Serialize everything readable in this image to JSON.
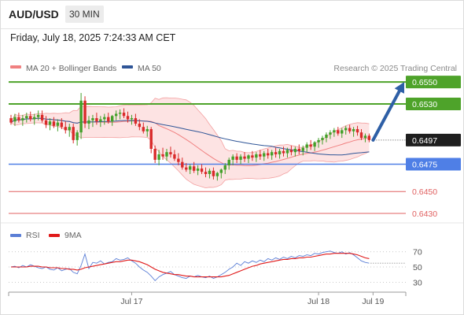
{
  "header": {
    "symbol": "AUD/USD",
    "interval": "30 MIN",
    "timestamp": "Friday, July 18, 2025 7:24:33 AM CET"
  },
  "colors": {
    "bollinger": "#f3a0a0",
    "bollinger_fill": "#fde3e3",
    "ma20": "#f08080",
    "ma50": "#2f5597",
    "resistance": "#4ea32a",
    "support": "#4f7fe6",
    "target": "#e06060",
    "arrow": "#2e5fa6",
    "candle_up": "#43a02a",
    "candle_down": "#d92a2a",
    "rsi": "#5b7fd6",
    "rsi_ma": "#e01a1a"
  },
  "chart_data": [
    {
      "type": "candlestick",
      "legend": [
        {
          "name": "MA 20 + Bollinger Bands",
          "color": "#f08080"
        },
        {
          "name": "MA 50",
          "color": "#2f5597"
        }
      ],
      "credit": "Research © 2025 Trading Central",
      "ylim": [
        0.6425,
        0.6553
      ],
      "current_price": "0.6497",
      "levels": [
        {
          "label": "0.6550",
          "value": 0.655,
          "kind": "resistance",
          "badge": true
        },
        {
          "label": "0.6530",
          "value": 0.653,
          "kind": "resistance",
          "badge": true
        },
        {
          "label": "0.6475",
          "value": 0.6475,
          "kind": "support",
          "badge": true
        },
        {
          "label": "0.6450",
          "value": 0.645,
          "kind": "target",
          "badge": false
        },
        {
          "label": "0.6430",
          "value": 0.643,
          "kind": "target",
          "badge": false
        }
      ],
      "forecast_arrow": {
        "from": 0.6497,
        "to": 0.655
      },
      "x_ticks": [
        {
          "label": "Jul 17",
          "index": 31
        },
        {
          "label": "Jul 18",
          "index": 79
        },
        {
          "label": "Jul 19",
          "index": 93
        }
      ],
      "candles": [
        [
          0.6517,
          0.652,
          0.6511,
          0.6513
        ],
        [
          0.6514,
          0.6521,
          0.651,
          0.6518
        ],
        [
          0.6518,
          0.6522,
          0.6513,
          0.6515
        ],
        [
          0.6515,
          0.652,
          0.651,
          0.6517
        ],
        [
          0.6517,
          0.6522,
          0.6513,
          0.6519
        ],
        [
          0.6519,
          0.6523,
          0.6514,
          0.6516
        ],
        [
          0.6516,
          0.6521,
          0.6511,
          0.6518
        ],
        [
          0.6518,
          0.6524,
          0.6515,
          0.652
        ],
        [
          0.652,
          0.6524,
          0.6513,
          0.6515
        ],
        [
          0.6515,
          0.6519,
          0.6508,
          0.6511
        ],
        [
          0.6511,
          0.6517,
          0.6506,
          0.6514
        ],
        [
          0.6514,
          0.6518,
          0.6508,
          0.651
        ],
        [
          0.651,
          0.6516,
          0.6505,
          0.6513
        ],
        [
          0.6513,
          0.6517,
          0.6507,
          0.6509
        ],
        [
          0.6509,
          0.6514,
          0.6503,
          0.6506
        ],
        [
          0.6506,
          0.6512,
          0.65,
          0.6509
        ],
        [
          0.6509,
          0.6512,
          0.6494,
          0.6497
        ],
        [
          0.6497,
          0.6506,
          0.6492,
          0.6504
        ],
        [
          0.6504,
          0.654,
          0.6498,
          0.6533
        ],
        [
          0.6533,
          0.6537,
          0.6508,
          0.6512
        ],
        [
          0.6512,
          0.6519,
          0.6507,
          0.6515
        ],
        [
          0.6515,
          0.652,
          0.6509,
          0.6517
        ],
        [
          0.6517,
          0.6522,
          0.6511,
          0.6514
        ],
        [
          0.6514,
          0.6519,
          0.6509,
          0.6516
        ],
        [
          0.6516,
          0.6521,
          0.6511,
          0.6518
        ],
        [
          0.6518,
          0.6522,
          0.6512,
          0.6514
        ],
        [
          0.6514,
          0.652,
          0.651,
          0.6519
        ],
        [
          0.6519,
          0.6524,
          0.6515,
          0.6521
        ],
        [
          0.6521,
          0.6525,
          0.6516,
          0.6522
        ],
        [
          0.6522,
          0.6526,
          0.6517,
          0.6519
        ],
        [
          0.6519,
          0.6523,
          0.6513,
          0.6516
        ],
        [
          0.6516,
          0.652,
          0.6511,
          0.6517
        ],
        [
          0.6517,
          0.6521,
          0.651,
          0.6512
        ],
        [
          0.6512,
          0.6516,
          0.6506,
          0.6509
        ],
        [
          0.6509,
          0.6513,
          0.6503,
          0.6505
        ],
        [
          0.6505,
          0.651,
          0.65,
          0.6507
        ],
        [
          0.6507,
          0.6509,
          0.6485,
          0.6489
        ],
        [
          0.6489,
          0.6492,
          0.6476,
          0.6479
        ],
        [
          0.6479,
          0.6488,
          0.6474,
          0.6484
        ],
        [
          0.6484,
          0.649,
          0.6479,
          0.6482
        ],
        [
          0.6482,
          0.6489,
          0.6478,
          0.6486
        ],
        [
          0.6486,
          0.6491,
          0.6481,
          0.6484
        ],
        [
          0.6484,
          0.6488,
          0.6478,
          0.648
        ],
        [
          0.648,
          0.6485,
          0.6474,
          0.6477
        ],
        [
          0.6477,
          0.6481,
          0.647,
          0.6472
        ],
        [
          0.6472,
          0.6476,
          0.6468,
          0.647
        ],
        [
          0.647,
          0.6475,
          0.6466,
          0.6473
        ],
        [
          0.6473,
          0.6477,
          0.6467,
          0.6469
        ],
        [
          0.6469,
          0.6474,
          0.6465,
          0.6471
        ],
        [
          0.6471,
          0.6475,
          0.6466,
          0.6468
        ],
        [
          0.6468,
          0.6472,
          0.6463,
          0.6466
        ],
        [
          0.6466,
          0.6471,
          0.6462,
          0.6469
        ],
        [
          0.6469,
          0.6472,
          0.6461,
          0.6464
        ],
        [
          0.6464,
          0.6468,
          0.646,
          0.6467
        ],
        [
          0.6467,
          0.6471,
          0.6462,
          0.647
        ],
        [
          0.647,
          0.6476,
          0.6466,
          0.6474
        ],
        [
          0.6474,
          0.6481,
          0.647,
          0.6479
        ],
        [
          0.6479,
          0.6484,
          0.6474,
          0.6482
        ],
        [
          0.6482,
          0.6485,
          0.6476,
          0.6479
        ],
        [
          0.6479,
          0.6484,
          0.6475,
          0.6482
        ],
        [
          0.6482,
          0.6486,
          0.6477,
          0.648
        ],
        [
          0.648,
          0.6484,
          0.6476,
          0.6483
        ],
        [
          0.6483,
          0.6487,
          0.6478,
          0.6481
        ],
        [
          0.6481,
          0.6486,
          0.6477,
          0.6484
        ],
        [
          0.6484,
          0.6488,
          0.6479,
          0.6482
        ],
        [
          0.6482,
          0.6487,
          0.6478,
          0.6485
        ],
        [
          0.6485,
          0.6489,
          0.648,
          0.6483
        ],
        [
          0.6483,
          0.6488,
          0.6479,
          0.6486
        ],
        [
          0.6486,
          0.649,
          0.6481,
          0.6484
        ],
        [
          0.6484,
          0.6489,
          0.648,
          0.6487
        ],
        [
          0.6487,
          0.6491,
          0.6482,
          0.6485
        ],
        [
          0.6485,
          0.649,
          0.6481,
          0.6488
        ],
        [
          0.6488,
          0.6492,
          0.6483,
          0.6486
        ],
        [
          0.6486,
          0.6491,
          0.6482,
          0.6489
        ],
        [
          0.6489,
          0.6493,
          0.6484,
          0.6487
        ],
        [
          0.6487,
          0.6492,
          0.6483,
          0.649
        ],
        [
          0.649,
          0.6495,
          0.6486,
          0.6493
        ],
        [
          0.6493,
          0.6497,
          0.6488,
          0.6491
        ],
        [
          0.6491,
          0.6496,
          0.6487,
          0.6495
        ],
        [
          0.6495,
          0.6499,
          0.649,
          0.6497
        ],
        [
          0.6497,
          0.6501,
          0.6493,
          0.6499
        ],
        [
          0.6499,
          0.6504,
          0.6495,
          0.6502
        ],
        [
          0.6502,
          0.6506,
          0.6498,
          0.6504
        ],
        [
          0.6504,
          0.6508,
          0.65,
          0.6506
        ],
        [
          0.6506,
          0.6509,
          0.6501,
          0.6503
        ],
        [
          0.6503,
          0.6508,
          0.6499,
          0.6506
        ],
        [
          0.6506,
          0.651,
          0.6502,
          0.6508
        ],
        [
          0.6508,
          0.6511,
          0.6503,
          0.6505
        ],
        [
          0.6505,
          0.6509,
          0.65,
          0.6507
        ],
        [
          0.6507,
          0.651,
          0.6501,
          0.6504
        ],
        [
          0.6504,
          0.6507,
          0.6497,
          0.6499
        ],
        [
          0.6499,
          0.6503,
          0.6495,
          0.6501
        ],
        [
          0.6501,
          0.6503,
          0.6495,
          0.6497
        ]
      ]
    },
    {
      "type": "line",
      "legend": [
        {
          "name": "RSI",
          "color": "#5b7fd6"
        },
        {
          "name": "9MA",
          "color": "#e01a1a"
        }
      ],
      "ylim": [
        20,
        78
      ],
      "y_ticks": [
        "70",
        "50",
        "30"
      ],
      "y_tick_values": [
        70,
        50,
        30
      ],
      "series": [
        {
          "name": "RSI",
          "values": [
            50,
            51,
            49,
            52,
            50,
            53,
            51,
            49,
            48,
            50,
            47,
            46,
            49,
            45,
            47,
            48,
            43,
            41,
            52,
            67,
            48,
            56,
            55,
            58,
            54,
            56,
            57,
            61,
            59,
            60,
            62,
            58,
            55,
            50,
            46,
            43,
            38,
            32,
            37,
            40,
            42,
            44,
            40,
            38,
            36,
            35,
            38,
            37,
            39,
            37,
            36,
            38,
            35,
            37,
            40,
            43,
            47,
            50,
            55,
            52,
            57,
            55,
            58,
            56,
            59,
            57,
            61,
            59,
            62,
            60,
            63,
            61,
            64,
            62,
            65,
            64,
            66,
            65,
            68,
            67,
            69,
            70,
            71,
            69,
            68,
            70,
            67,
            69,
            66,
            62,
            58,
            56,
            55
          ]
        },
        {
          "name": "9MA",
          "values": [
            50,
            50,
            50,
            50,
            50,
            51,
            51,
            51,
            50,
            50,
            49,
            49,
            49,
            48,
            48,
            47,
            47,
            46,
            47,
            49,
            50,
            51,
            52,
            53,
            54,
            55,
            56,
            57,
            57,
            58,
            59,
            59,
            58,
            57,
            55,
            53,
            50,
            47,
            45,
            43,
            42,
            41,
            40,
            40,
            39,
            38,
            38,
            37,
            37,
            37,
            37,
            37,
            37,
            37,
            37,
            38,
            39,
            41,
            43,
            45,
            47,
            49,
            51,
            52,
            54,
            55,
            56,
            57,
            58,
            59,
            60,
            60,
            61,
            61,
            62,
            62,
            63,
            63,
            64,
            65,
            66,
            67,
            67,
            68,
            68,
            68,
            68,
            68,
            67,
            66,
            64,
            62,
            61
          ]
        }
      ]
    }
  ]
}
